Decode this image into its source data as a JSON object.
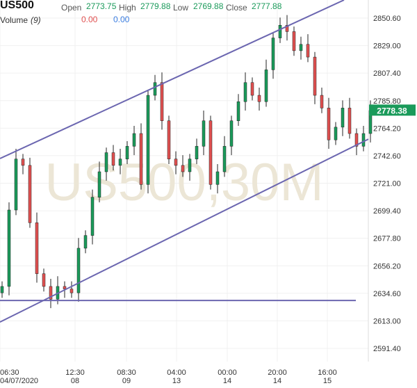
{
  "header": {
    "symbol": "US500",
    "open_label": "Open",
    "open": "2773.75",
    "high_label": "High",
    "high": "2779.88",
    "low_label": "Low",
    "low": "2769.88",
    "close_label": "Close",
    "close": "2777.88",
    "volume_label": "Volume",
    "volume_period": "(9)",
    "volume_down": "0.00",
    "volume_up": "0.00"
  },
  "chart_data": {
    "type": "candlestick",
    "title": "US500,30M",
    "ylim": [
      2591.4,
      2850.6
    ],
    "y_ticks": [
      "2850.60",
      "2829.00",
      "2807.40",
      "2785.80",
      "2764.20",
      "2742.60",
      "2721.00",
      "2699.40",
      "2677.80",
      "2656.20",
      "2634.60",
      "2613.00",
      "2591.40"
    ],
    "x_ticks": [
      {
        "time": "06:30",
        "date": "04/07/2020",
        "index": 0
      },
      {
        "time": "12:30",
        "date": "08",
        "index": 10.8
      },
      {
        "time": "08:30",
        "date": "09",
        "index": 18.2
      },
      {
        "time": "04:00",
        "date": "13",
        "index": 25.4
      },
      {
        "time": "00:00",
        "date": "14",
        "index": 32.7
      },
      {
        "time": "20:00",
        "date": "14",
        "index": 39.9
      },
      {
        "time": "16:00",
        "date": "15",
        "index": 47.1
      }
    ],
    "closes": [
      2640,
      2700,
      2740,
      2735,
      2690,
      2650,
      2640,
      2630,
      2640,
      2638,
      2635,
      2670,
      2680,
      2710,
      2730,
      2745,
      2735,
      2740,
      2750,
      2760,
      2720,
      2790,
      2800,
      2770,
      2740,
      2735,
      2730,
      2740,
      2750,
      2770,
      2720,
      2730,
      2750,
      2770,
      2785,
      2800,
      2790,
      2785,
      2810,
      2835,
      2845,
      2840,
      2825,
      2830,
      2820,
      2790,
      2780,
      2755,
      2765,
      2780,
      2760,
      2750,
      2760,
      2778
    ],
    "current_price": "2778.38",
    "trend_lines": [
      {
        "from": [
          0,
          2740.4
        ],
        "to": [
          49.5,
          2864.8
        ]
      },
      {
        "from": [
          0,
          2612.1
        ],
        "to": [
          53,
          2755.6
        ]
      },
      {
        "from": [
          0,
          2629.0
        ],
        "to": [
          51.2,
          2629.0
        ]
      }
    ],
    "colors": {
      "up": "#1a9a5a",
      "down": "#e05050",
      "trend": "#6b66b0",
      "watermark": "#ece6d6",
      "price_tag": "#1a9a5a"
    }
  }
}
